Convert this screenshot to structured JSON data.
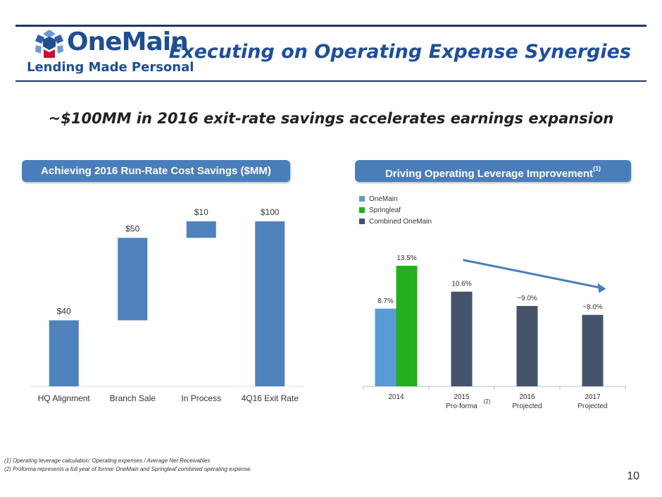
{
  "logo": {
    "word": "OneMain",
    "reg": "®",
    "tagline": "Lending Made Personal"
  },
  "title": "Executing on Operating Expense Synergies",
  "subtitle": "~$100MM in 2016 exit-rate savings accelerates earnings expansion",
  "left_panel": {
    "banner": "Achieving 2016 Run-Rate Cost Savings ($MM)"
  },
  "right_panel": {
    "banner": "Driving Operating Leverage Improvement",
    "banner_sup": "(1)"
  },
  "chart_data": [
    {
      "type": "bar",
      "subtype": "waterfall",
      "title": "Achieving 2016 Run-Rate Cost Savings ($MM)",
      "categories": [
        "HQ Alignment",
        "Branch Sale",
        "In Process",
        "4Q16 Exit Rate"
      ],
      "values": [
        40,
        50,
        10,
        100
      ],
      "labels": [
        "$40",
        "$50",
        "$10",
        "$100"
      ],
      "ylim": [
        0,
        100
      ],
      "colors": {
        "bar": "#4f81bd"
      },
      "grid": false
    },
    {
      "type": "bar",
      "title": "Driving Operating Leverage Improvement",
      "categories": [
        "2014",
        "2015",
        "2016",
        "2017"
      ],
      "category_sublabels": [
        "",
        "Pro-forma",
        "Projected",
        "Projected"
      ],
      "category_notes": [
        "",
        "(2)",
        "",
        ""
      ],
      "series": [
        {
          "name": "OneMain",
          "color": "#5b9bd5",
          "values": [
            8.7,
            null,
            null,
            null
          ],
          "labels": [
            "8.7%",
            "",
            "",
            ""
          ]
        },
        {
          "name": "Springleaf",
          "color": "#22b01c",
          "values": [
            13.5,
            null,
            null,
            null
          ],
          "labels": [
            "13.5%",
            "",
            "",
            ""
          ]
        },
        {
          "name": "Combined OneMain",
          "color": "#44546a",
          "values": [
            null,
            10.6,
            9.0,
            8.0
          ],
          "labels": [
            "",
            "10.6%",
            "~9.0%",
            "~8.0%"
          ]
        }
      ],
      "unit": "%",
      "ylim": [
        0,
        13.5
      ],
      "legend": "top-left",
      "trend_arrow": {
        "from_category": "2015",
        "to_category": "2017",
        "color": "#4a7ebb"
      },
      "grid": false
    }
  ],
  "footnotes": [
    "(1)   Operating leverage  calculation: Operating expenses / Average Net Receivables",
    "(2)   Proforma represents a full year of former OneMain and Springleaf combined operating expense"
  ],
  "page_number": "10"
}
